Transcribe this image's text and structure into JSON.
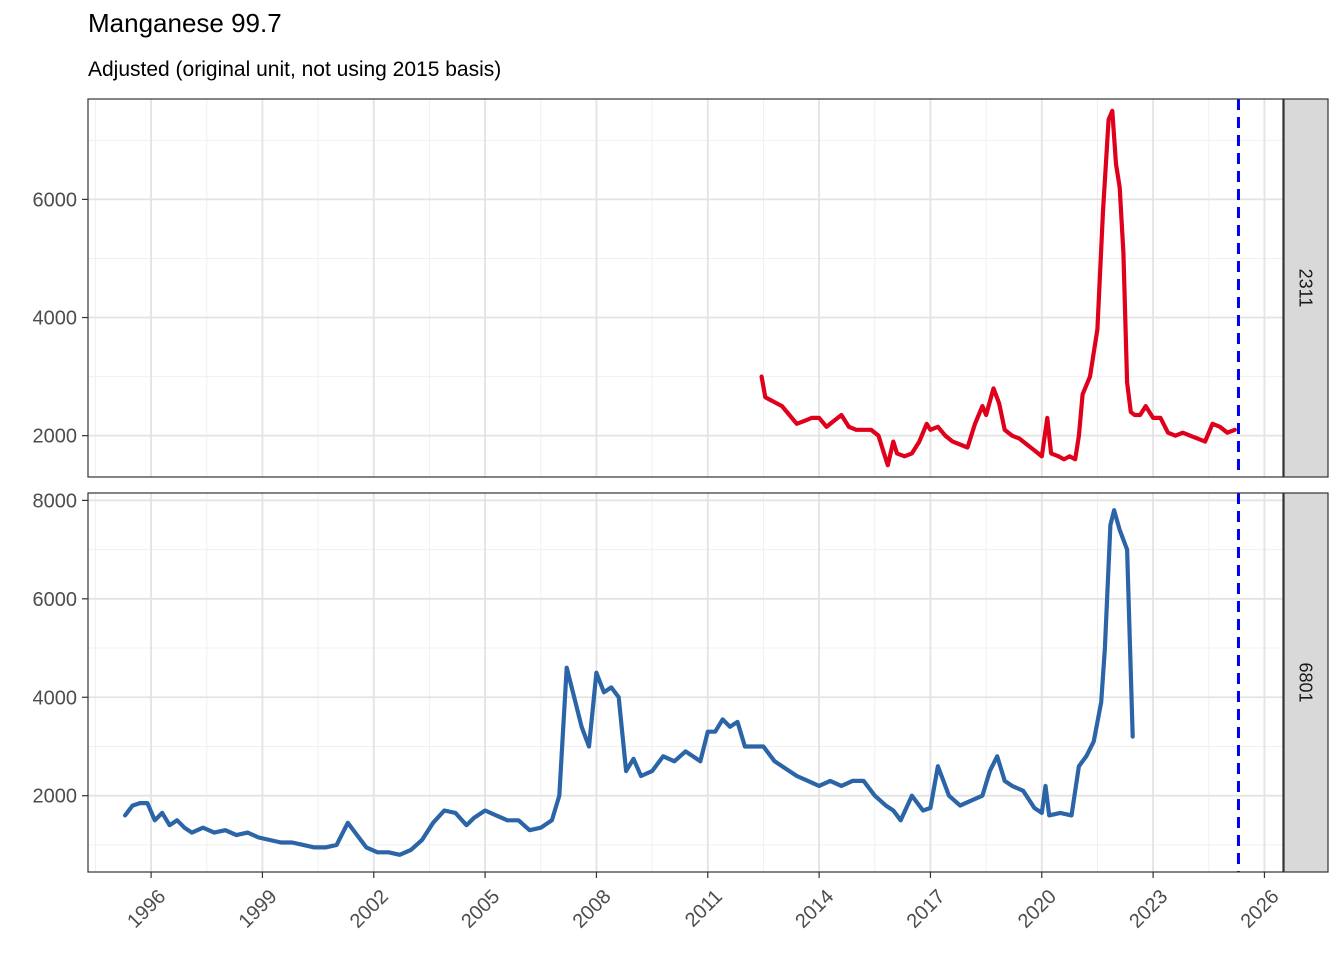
{
  "chart_data": {
    "type": "line",
    "title": "Manganese 99.7",
    "subtitle": "Adjusted (original unit, not using 2015 basis)",
    "xlabel": "",
    "ylabel": "",
    "x_axis": {
      "min": 1994.3,
      "max": 2026.5,
      "ticks": [
        1996,
        1999,
        2002,
        2005,
        2008,
        2011,
        2014,
        2017,
        2020,
        2023,
        2026
      ],
      "tick_labels": [
        "1996",
        "1999",
        "2002",
        "2005",
        "2008",
        "2011",
        "2014",
        "2017",
        "2020",
        "2023",
        "2026"
      ],
      "label_angle": -45
    },
    "grid": true,
    "reference_line": {
      "x": 2025.3,
      "style": "dashed",
      "color": "#0000ee"
    },
    "panels": [
      {
        "strip_label": "2311",
        "color": "#e0001b",
        "ylim": [
          1300,
          7700
        ],
        "yticks": [
          2000,
          4000,
          6000
        ],
        "ytick_labels": [
          "2000",
          "4000",
          "6000"
        ],
        "series": {
          "x": [
            2012.45,
            2012.55,
            2012.7,
            2012.85,
            2013.0,
            2013.2,
            2013.4,
            2013.6,
            2013.8,
            2014.0,
            2014.2,
            2014.4,
            2014.6,
            2014.8,
            2015.0,
            2015.2,
            2015.4,
            2015.6,
            2015.75,
            2015.85,
            2016.0,
            2016.1,
            2016.3,
            2016.5,
            2016.7,
            2016.9,
            2017.0,
            2017.2,
            2017.4,
            2017.6,
            2017.8,
            2018.0,
            2018.2,
            2018.4,
            2018.5,
            2018.7,
            2018.85,
            2019.0,
            2019.2,
            2019.4,
            2019.6,
            2019.8,
            2020.0,
            2020.15,
            2020.25,
            2020.45,
            2020.6,
            2020.75,
            2020.9,
            2021.0,
            2021.1,
            2021.3,
            2021.5,
            2021.65,
            2021.8,
            2021.9,
            2022.0,
            2022.1,
            2022.2,
            2022.3,
            2022.4,
            2022.5,
            2022.65,
            2022.8,
            2023.0,
            2023.2,
            2023.4,
            2023.6,
            2023.8,
            2024.0,
            2024.2,
            2024.4,
            2024.6,
            2024.8,
            2025.0,
            2025.2
          ],
          "values": [
            3000,
            2650,
            2600,
            2550,
            2500,
            2350,
            2200,
            2250,
            2300,
            2300,
            2150,
            2250,
            2350,
            2150,
            2100,
            2100,
            2100,
            2000,
            1700,
            1500,
            1900,
            1700,
            1650,
            1700,
            1900,
            2200,
            2100,
            2150,
            2000,
            1900,
            1850,
            1800,
            2200,
            2500,
            2350,
            2800,
            2550,
            2100,
            2000,
            1950,
            1850,
            1750,
            1650,
            2300,
            1700,
            1650,
            1600,
            1650,
            1600,
            2000,
            2700,
            3000,
            3800,
            5800,
            7350,
            7500,
            6600,
            6200,
            5100,
            2900,
            2400,
            2350,
            2350,
            2500,
            2300,
            2300,
            2050,
            2000,
            2050,
            2000,
            1950,
            1900,
            2200,
            2150,
            2050,
            2100
          ]
        }
      },
      {
        "strip_label": "6801",
        "color": "#2b65a8",
        "ylim": [
          450,
          8150
        ],
        "yticks": [
          2000,
          4000,
          6000,
          8000
        ],
        "ytick_labels": [
          "2000",
          "4000",
          "6000",
          "8000"
        ],
        "series": {
          "x": [
            1995.3,
            1995.5,
            1995.7,
            1995.9,
            1996.1,
            1996.3,
            1996.5,
            1996.7,
            1996.9,
            1997.1,
            1997.4,
            1997.7,
            1998.0,
            1998.3,
            1998.6,
            1998.9,
            1999.2,
            1999.5,
            1999.8,
            2000.1,
            2000.4,
            2000.7,
            2001.0,
            2001.3,
            2001.5,
            2001.8,
            2002.1,
            2002.4,
            2002.7,
            2003.0,
            2003.3,
            2003.6,
            2003.9,
            2004.2,
            2004.5,
            2004.7,
            2005.0,
            2005.3,
            2005.6,
            2005.9,
            2006.2,
            2006.5,
            2006.8,
            2007.0,
            2007.2,
            2007.4,
            2007.6,
            2007.8,
            2008.0,
            2008.2,
            2008.4,
            2008.6,
            2008.8,
            2009.0,
            2009.2,
            2009.5,
            2009.8,
            2010.1,
            2010.4,
            2010.6,
            2010.8,
            2011.0,
            2011.2,
            2011.4,
            2011.6,
            2011.8,
            2012.0,
            2012.2,
            2012.5,
            2012.8,
            2013.1,
            2013.4,
            2013.7,
            2014.0,
            2014.3,
            2014.6,
            2014.9,
            2015.2,
            2015.5,
            2015.8,
            2016.0,
            2016.2,
            2016.5,
            2016.8,
            2017.0,
            2017.2,
            2017.5,
            2017.8,
            2018.1,
            2018.4,
            2018.6,
            2018.8,
            2019.0,
            2019.2,
            2019.5,
            2019.8,
            2020.0,
            2020.1,
            2020.2,
            2020.5,
            2020.8,
            2021.0,
            2021.2,
            2021.4,
            2021.6,
            2021.7,
            2021.85,
            2021.95,
            2022.1,
            2022.3,
            2022.45
          ],
          "values": [
            1600,
            1800,
            1850,
            1850,
            1500,
            1650,
            1400,
            1500,
            1350,
            1250,
            1350,
            1250,
            1300,
            1200,
            1250,
            1150,
            1100,
            1050,
            1050,
            1000,
            950,
            950,
            1000,
            1450,
            1250,
            950,
            850,
            850,
            800,
            900,
            1100,
            1450,
            1700,
            1650,
            1400,
            1550,
            1700,
            1600,
            1500,
            1500,
            1300,
            1350,
            1500,
            2000,
            4600,
            4000,
            3400,
            3000,
            4500,
            4100,
            4200,
            4000,
            2500,
            2750,
            2400,
            2500,
            2800,
            2700,
            2900,
            2800,
            2700,
            3300,
            3300,
            3550,
            3400,
            3500,
            3000,
            3000,
            3000,
            2700,
            2550,
            2400,
            2300,
            2200,
            2300,
            2200,
            2300,
            2300,
            2000,
            1800,
            1700,
            1500,
            2000,
            1700,
            1750,
            2600,
            2000,
            1800,
            1900,
            2000,
            2500,
            2800,
            2300,
            2200,
            2100,
            1750,
            1650,
            2200,
            1600,
            1650,
            1600,
            2600,
            2800,
            3100,
            3900,
            5000,
            7500,
            7800,
            7400,
            7000,
            3200
          ]
        }
      }
    ]
  }
}
